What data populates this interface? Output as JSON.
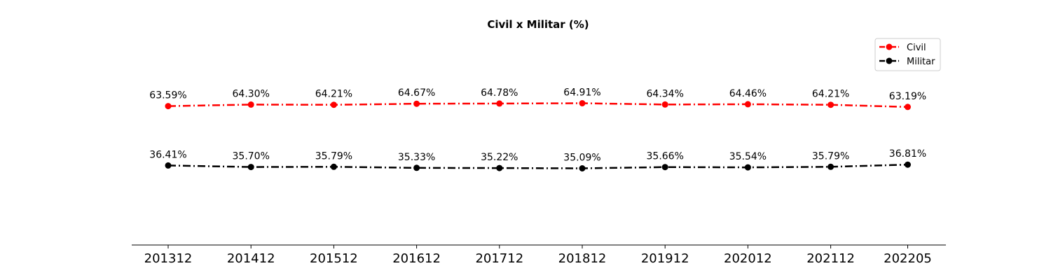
{
  "chart_data": {
    "type": "line",
    "title": "Civil x Militar (%)",
    "xlabel": "",
    "ylabel": "",
    "categories": [
      "201312",
      "201412",
      "201512",
      "201612",
      "201712",
      "201812",
      "201912",
      "202012",
      "202112",
      "202205"
    ],
    "x_spacing": [
      0,
      1,
      2,
      3,
      4,
      5,
      6,
      7,
      8,
      8.93
    ],
    "ylim": [
      0,
      100
    ],
    "grid": false,
    "legend_position": "top-right",
    "series": [
      {
        "name": "Civil",
        "color": "#ff0000",
        "line_style": "dashdot",
        "marker": "circle",
        "values": [
          63.59,
          64.3,
          64.21,
          64.67,
          64.78,
          64.91,
          64.34,
          64.46,
          64.21,
          63.19
        ],
        "labels": [
          "63.59%",
          "64.30%",
          "64.21%",
          "64.67%",
          "64.78%",
          "64.91%",
          "64.34%",
          "64.46%",
          "64.21%",
          "63.19%"
        ]
      },
      {
        "name": "Militar",
        "color": "#000000",
        "line_style": "dashdot",
        "marker": "circle",
        "values": [
          36.41,
          35.7,
          35.79,
          35.33,
          35.22,
          35.09,
          35.66,
          35.54,
          35.79,
          36.81
        ],
        "labels": [
          "36.41%",
          "35.70%",
          "35.79%",
          "35.33%",
          "35.22%",
          "35.09%",
          "35.66%",
          "35.54%",
          "35.79%",
          "36.81%"
        ]
      }
    ]
  }
}
